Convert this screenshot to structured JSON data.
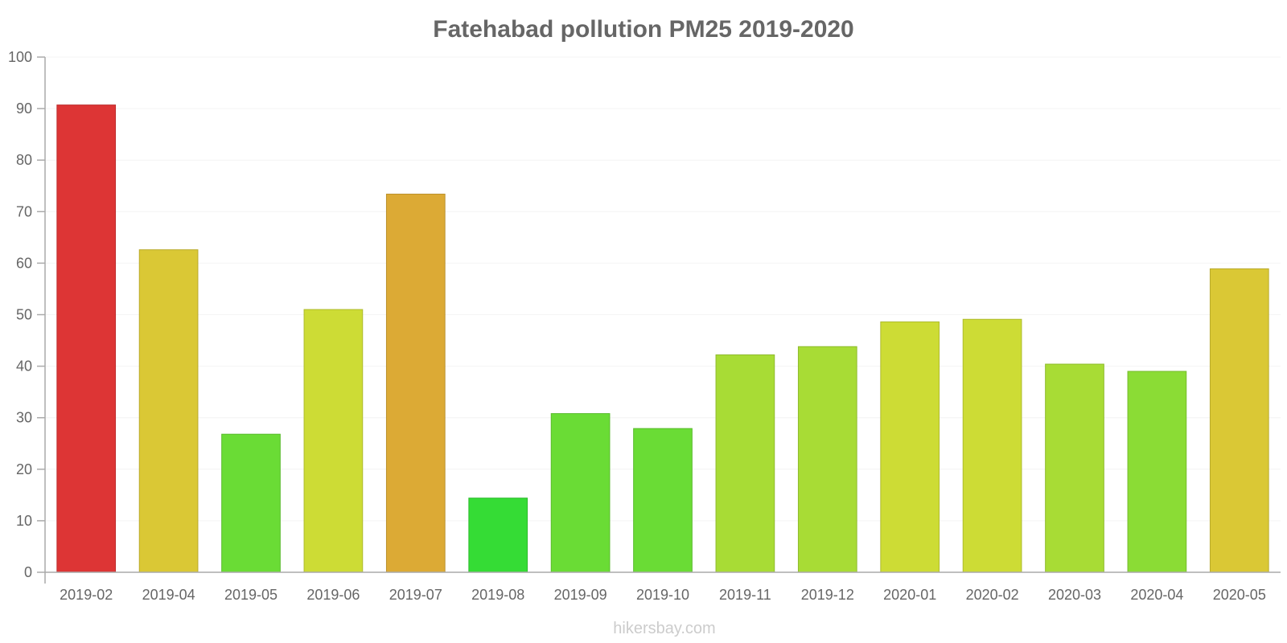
{
  "chart_data": {
    "type": "bar",
    "title": "Fatehabad pollution PM25 2019-2020",
    "xlabel": "",
    "ylabel": "",
    "ylim": [
      0,
      100
    ],
    "yticks": [
      0,
      10,
      20,
      30,
      40,
      50,
      60,
      70,
      80,
      90,
      100
    ],
    "grid": true,
    "categories": [
      "2019-02",
      "2019-04",
      "2019-05",
      "2019-06",
      "2019-07",
      "2019-08",
      "2019-09",
      "2019-10",
      "2019-11",
      "2019-12",
      "2020-01",
      "2020-02",
      "2020-03",
      "2020-04",
      "2020-05"
    ],
    "values": [
      90.7,
      62.6,
      26.8,
      51.0,
      73.4,
      14.4,
      30.8,
      27.9,
      42.2,
      43.8,
      48.6,
      49.1,
      40.4,
      39.0,
      58.9
    ],
    "colors": [
      "#dd3535",
      "#dac835",
      "#6adc35",
      "#cddc35",
      "#dcaa35",
      "#35dc35",
      "#6adc35",
      "#6adc35",
      "#a8dc35",
      "#a8dc35",
      "#cddc35",
      "#cddc35",
      "#a8dc35",
      "#8bdc35",
      "#dac835"
    ]
  },
  "watermark": "hikersbay.com"
}
